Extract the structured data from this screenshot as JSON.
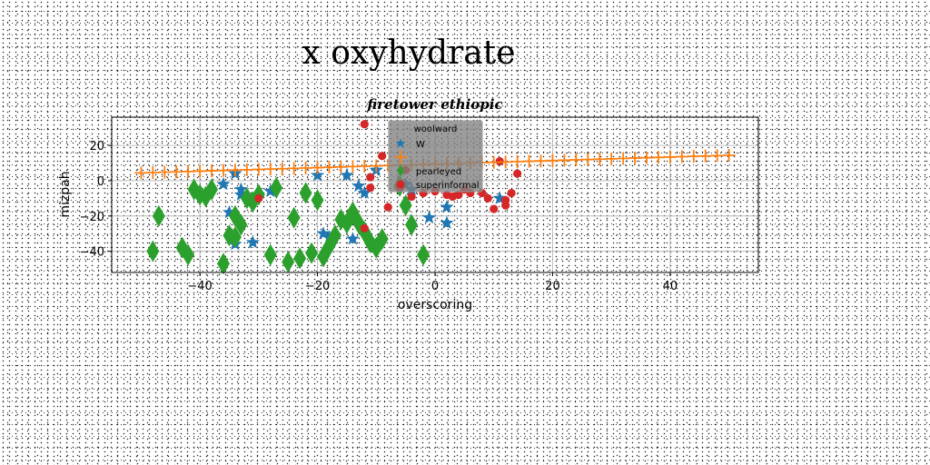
{
  "chart_data": {
    "type": "scatter",
    "suptitle": "x oxyhydrate",
    "title": "firetower ethiopic",
    "xlabel": "overscoring",
    "ylabel": "mizpah",
    "xlim": [
      -55,
      55
    ],
    "ylim": [
      -52,
      36
    ],
    "xticks": [
      -40,
      -20,
      0,
      20,
      40
    ],
    "yticks": [
      -40,
      -20,
      0,
      20
    ],
    "grid": true,
    "legend": {
      "title": "woolward",
      "placement": "top-center",
      "entries": [
        "W",
        "",
        "pearleyed",
        "superinformal"
      ]
    },
    "series": [
      {
        "name": "W",
        "marker": "star",
        "color": "#1f77b4",
        "points": [
          [
            -36,
            -2
          ],
          [
            -34,
            4
          ],
          [
            -33,
            -5
          ],
          [
            -33,
            -8
          ],
          [
            -35,
            -18
          ],
          [
            -34,
            -36
          ],
          [
            -31,
            -35
          ],
          [
            -28,
            -6
          ],
          [
            -20,
            3
          ],
          [
            -18,
            -32
          ],
          [
            -19,
            -30
          ],
          [
            -15,
            3
          ],
          [
            -14,
            -33
          ],
          [
            -13,
            -3
          ],
          [
            -12,
            -7
          ],
          [
            -10,
            6
          ],
          [
            -5,
            -2
          ],
          [
            -4,
            -5
          ],
          [
            -1,
            -21
          ],
          [
            2,
            -15
          ],
          [
            2,
            -24
          ],
          [
            11,
            -10
          ]
        ]
      },
      {
        "name": "",
        "marker": "plus",
        "color": "#ff7f0e",
        "points": [
          [
            -50,
            4.4
          ],
          [
            -48,
            4.6
          ],
          [
            -46,
            4.8
          ],
          [
            -44,
            5.0
          ],
          [
            -42,
            5.2
          ],
          [
            -40,
            5.4
          ],
          [
            -38,
            5.6
          ],
          [
            -36,
            5.8
          ],
          [
            -34,
            6.0
          ],
          [
            -32,
            6.2
          ],
          [
            -30,
            6.4
          ],
          [
            -28,
            6.6
          ],
          [
            -26,
            6.8
          ],
          [
            -24,
            7.0
          ],
          [
            -22,
            7.2
          ],
          [
            -20,
            7.4
          ],
          [
            -18,
            7.6
          ],
          [
            -16,
            7.8
          ],
          [
            -14,
            8.0
          ],
          [
            -12,
            8.2
          ],
          [
            -10,
            8.4
          ],
          [
            -8,
            8.6
          ],
          [
            -6,
            8.8
          ],
          [
            -4,
            9.0
          ],
          [
            -2,
            9.2
          ],
          [
            0,
            9.4
          ],
          [
            2,
            9.6
          ],
          [
            4,
            9.8
          ],
          [
            6,
            10.0
          ],
          [
            8,
            10.2
          ],
          [
            10,
            10.4
          ],
          [
            12,
            10.6
          ],
          [
            14,
            10.8
          ],
          [
            16,
            11.0
          ],
          [
            18,
            11.2
          ],
          [
            20,
            11.4
          ],
          [
            22,
            11.6
          ],
          [
            24,
            11.8
          ],
          [
            26,
            12.0
          ],
          [
            28,
            12.2
          ],
          [
            30,
            12.4
          ],
          [
            32,
            12.6
          ],
          [
            34,
            12.8
          ],
          [
            36,
            13.0
          ],
          [
            38,
            13.2
          ],
          [
            40,
            13.4
          ],
          [
            42,
            13.6
          ],
          [
            44,
            13.8
          ],
          [
            46,
            14.0
          ],
          [
            48,
            14.2
          ],
          [
            50,
            14.4
          ]
        ]
      },
      {
        "name": "pearleyed",
        "marker": "diamond",
        "color": "#2ca02c",
        "points": [
          [
            -47,
            -20
          ],
          [
            -43,
            -38
          ],
          [
            -42,
            -42
          ],
          [
            -41,
            -5
          ],
          [
            -40,
            -8
          ],
          [
            -39,
            -9
          ],
          [
            -38,
            -5
          ],
          [
            -36,
            -47
          ],
          [
            -35,
            -31
          ],
          [
            -34,
            -32
          ],
          [
            -34,
            -20
          ],
          [
            -33,
            -25
          ],
          [
            -32,
            -10
          ],
          [
            -31,
            -12
          ],
          [
            -30,
            -8
          ],
          [
            -28,
            -42
          ],
          [
            -27,
            -4
          ],
          [
            -25,
            -46
          ],
          [
            -24,
            -21
          ],
          [
            -23,
            -44
          ],
          [
            -22,
            -7
          ],
          [
            -21,
            -41
          ],
          [
            -20,
            -11
          ],
          [
            -19,
            -43
          ],
          [
            -18,
            -37
          ],
          [
            -17,
            -31
          ],
          [
            -16,
            -22
          ],
          [
            -15,
            -24
          ],
          [
            -14,
            -18
          ],
          [
            -13,
            -24
          ],
          [
            -12,
            -29
          ],
          [
            -11,
            -35
          ],
          [
            -10,
            -38
          ],
          [
            -9,
            -33
          ],
          [
            -6,
            -3
          ],
          [
            -5,
            -14
          ],
          [
            -4,
            -25
          ],
          [
            -2,
            -42
          ],
          [
            -48,
            -40
          ]
        ]
      },
      {
        "name": "superinformal",
        "marker": "circle",
        "color": "#d62728",
        "points": [
          [
            -12,
            32
          ],
          [
            -11,
            2
          ],
          [
            -11,
            -4
          ],
          [
            -12,
            -27
          ],
          [
            -9,
            14
          ],
          [
            -8,
            -15
          ],
          [
            -6,
            -4
          ],
          [
            -4,
            -9
          ],
          [
            -2,
            -7
          ],
          [
            0,
            -6
          ],
          [
            2,
            -8
          ],
          [
            3,
            -9
          ],
          [
            4,
            -8
          ],
          [
            5,
            -5
          ],
          [
            6,
            -7
          ],
          [
            8,
            -7
          ],
          [
            9,
            -10
          ],
          [
            10,
            -16
          ],
          [
            11,
            11
          ],
          [
            12,
            -11
          ],
          [
            12,
            -14
          ],
          [
            13,
            -7
          ],
          [
            14,
            4
          ],
          [
            -30,
            -10
          ],
          [
            -5,
            6
          ]
        ]
      }
    ]
  }
}
